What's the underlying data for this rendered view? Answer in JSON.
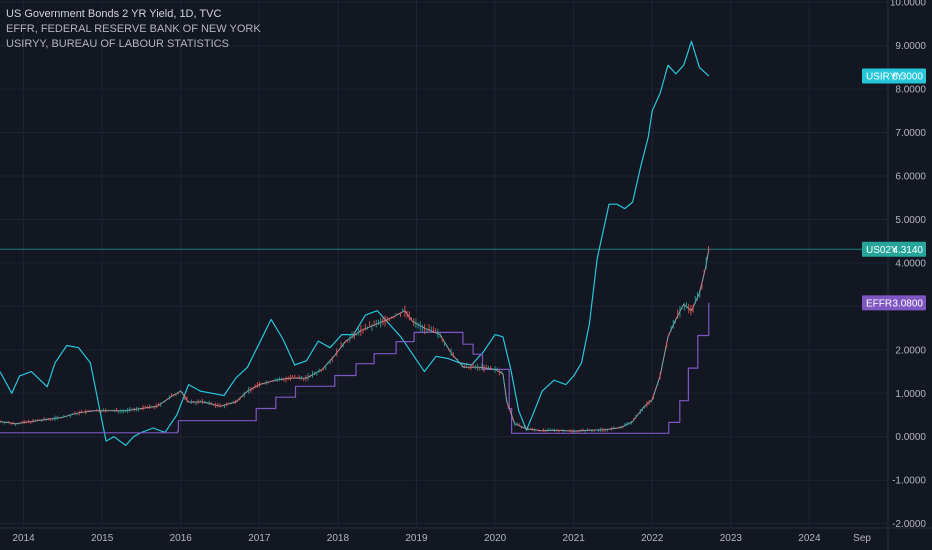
{
  "legend": {
    "title": "US Government Bonds 2 YR Yield, 1D, TVC",
    "line2": "EFFR, FEDERAL RESERVE BANK OF NEW YORK",
    "line3": "USIRYY, BUREAU OF LABOUR STATISTICS"
  },
  "colors": {
    "background": "#131722",
    "grid": "#1f2332",
    "usirry": "#26c6da",
    "us02y": "#26a69a",
    "us02y_down": "#ef5350",
    "us02y_line": "#9aa0ab",
    "effr": "#7e57c2"
  },
  "chart_data": {
    "type": "line",
    "xlim": [
      2013.7,
      2025.0
    ],
    "ylim": [
      -2.1,
      10.05
    ],
    "x_ticks": [
      {
        "x": 2014,
        "label": "2014"
      },
      {
        "x": 2015,
        "label": "2015"
      },
      {
        "x": 2016,
        "label": "2016"
      },
      {
        "x": 2017,
        "label": "2017"
      },
      {
        "x": 2018,
        "label": "2018"
      },
      {
        "x": 2019,
        "label": "2019"
      },
      {
        "x": 2020,
        "label": "2020"
      },
      {
        "x": 2021,
        "label": "2021"
      },
      {
        "x": 2022,
        "label": "2022"
      },
      {
        "x": 2023,
        "label": "2023"
      },
      {
        "x": 2024,
        "label": "2024"
      },
      {
        "x": 2024.67,
        "label": "Sep"
      }
    ],
    "y_ticks": [
      {
        "v": 10,
        "label": "10.0000"
      },
      {
        "v": 9,
        "label": "9.0000"
      },
      {
        "v": 8,
        "label": "8.0000"
      },
      {
        "v": 7,
        "label": "7.0000"
      },
      {
        "v": 6,
        "label": "6.0000"
      },
      {
        "v": 5,
        "label": "5.0000"
      },
      {
        "v": 4,
        "label": "4.0000"
      },
      {
        "v": 3,
        "label": "3.0000"
      },
      {
        "v": 2,
        "label": "2.0000"
      },
      {
        "v": 1,
        "label": "1.0000"
      },
      {
        "v": 0,
        "label": "0.0000"
      },
      {
        "v": -1,
        "label": "-1.0000"
      },
      {
        "v": -2,
        "label": "-2.0000"
      }
    ],
    "price_line": 4.314,
    "series": [
      {
        "name": "USIRYY",
        "last_value": "8.3000",
        "points": [
          [
            2013.7,
            1.5
          ],
          [
            2013.85,
            1.0
          ],
          [
            2013.95,
            1.4
          ],
          [
            2014.1,
            1.5
          ],
          [
            2014.3,
            1.15
          ],
          [
            2014.4,
            1.7
          ],
          [
            2014.55,
            2.1
          ],
          [
            2014.7,
            2.05
          ],
          [
            2014.85,
            1.7
          ],
          [
            2014.95,
            0.8
          ],
          [
            2015.05,
            -0.1
          ],
          [
            2015.15,
            0.0
          ],
          [
            2015.3,
            -0.2
          ],
          [
            2015.4,
            0.0
          ],
          [
            2015.5,
            0.1
          ],
          [
            2015.65,
            0.2
          ],
          [
            2015.8,
            0.1
          ],
          [
            2015.95,
            0.5
          ],
          [
            2016.1,
            1.2
          ],
          [
            2016.25,
            1.05
          ],
          [
            2016.4,
            1.0
          ],
          [
            2016.55,
            0.95
          ],
          [
            2016.7,
            1.35
          ],
          [
            2016.85,
            1.6
          ],
          [
            2017.0,
            2.15
          ],
          [
            2017.15,
            2.7
          ],
          [
            2017.3,
            2.25
          ],
          [
            2017.45,
            1.65
          ],
          [
            2017.6,
            1.75
          ],
          [
            2017.75,
            2.2
          ],
          [
            2017.9,
            2.05
          ],
          [
            2018.05,
            2.35
          ],
          [
            2018.2,
            2.35
          ],
          [
            2018.35,
            2.8
          ],
          [
            2018.5,
            2.9
          ],
          [
            2018.65,
            2.6
          ],
          [
            2018.8,
            2.3
          ],
          [
            2018.95,
            1.9
          ],
          [
            2019.1,
            1.5
          ],
          [
            2019.25,
            1.85
          ],
          [
            2019.4,
            1.8
          ],
          [
            2019.55,
            1.7
          ],
          [
            2019.7,
            1.65
          ],
          [
            2019.85,
            1.95
          ],
          [
            2020.0,
            2.35
          ],
          [
            2020.1,
            2.3
          ],
          [
            2020.2,
            1.55
          ],
          [
            2020.3,
            0.6
          ],
          [
            2020.4,
            0.15
          ],
          [
            2020.5,
            0.6
          ],
          [
            2020.6,
            1.05
          ],
          [
            2020.75,
            1.3
          ],
          [
            2020.9,
            1.2
          ],
          [
            2021.0,
            1.4
          ],
          [
            2021.1,
            1.7
          ],
          [
            2021.2,
            2.6
          ],
          [
            2021.3,
            4.1
          ],
          [
            2021.45,
            5.35
          ],
          [
            2021.55,
            5.35
          ],
          [
            2021.65,
            5.25
          ],
          [
            2021.75,
            5.4
          ],
          [
            2021.85,
            6.2
          ],
          [
            2021.95,
            6.9
          ],
          [
            2022.0,
            7.5
          ],
          [
            2022.1,
            7.9
          ],
          [
            2022.2,
            8.55
          ],
          [
            2022.3,
            8.35
          ],
          [
            2022.4,
            8.55
          ],
          [
            2022.5,
            9.1
          ],
          [
            2022.6,
            8.5
          ],
          [
            2022.72,
            8.3
          ]
        ]
      },
      {
        "name": "US02Y",
        "last_value": "4.3140",
        "points": [
          [
            2013.7,
            0.35
          ],
          [
            2013.9,
            0.3
          ],
          [
            2014.1,
            0.35
          ],
          [
            2014.3,
            0.4
          ],
          [
            2014.5,
            0.45
          ],
          [
            2014.7,
            0.55
          ],
          [
            2014.9,
            0.6
          ],
          [
            2015.1,
            0.6
          ],
          [
            2015.3,
            0.6
          ],
          [
            2015.5,
            0.65
          ],
          [
            2015.7,
            0.7
          ],
          [
            2015.9,
            0.95
          ],
          [
            2016.0,
            1.05
          ],
          [
            2016.1,
            0.8
          ],
          [
            2016.3,
            0.8
          ],
          [
            2016.5,
            0.7
          ],
          [
            2016.7,
            0.8
          ],
          [
            2016.85,
            1.05
          ],
          [
            2017.0,
            1.2
          ],
          [
            2017.2,
            1.3
          ],
          [
            2017.4,
            1.35
          ],
          [
            2017.6,
            1.35
          ],
          [
            2017.8,
            1.55
          ],
          [
            2017.95,
            1.85
          ],
          [
            2018.1,
            2.2
          ],
          [
            2018.3,
            2.45
          ],
          [
            2018.5,
            2.6
          ],
          [
            2018.7,
            2.75
          ],
          [
            2018.85,
            2.9
          ],
          [
            2018.95,
            2.65
          ],
          [
            2019.1,
            2.5
          ],
          [
            2019.3,
            2.35
          ],
          [
            2019.45,
            1.9
          ],
          [
            2019.6,
            1.6
          ],
          [
            2019.8,
            1.6
          ],
          [
            2020.0,
            1.55
          ],
          [
            2020.1,
            1.45
          ],
          [
            2020.15,
            0.8
          ],
          [
            2020.25,
            0.3
          ],
          [
            2020.4,
            0.18
          ],
          [
            2020.6,
            0.14
          ],
          [
            2020.8,
            0.15
          ],
          [
            2021.0,
            0.13
          ],
          [
            2021.2,
            0.15
          ],
          [
            2021.4,
            0.16
          ],
          [
            2021.6,
            0.21
          ],
          [
            2021.75,
            0.35
          ],
          [
            2021.9,
            0.7
          ],
          [
            2022.0,
            0.85
          ],
          [
            2022.1,
            1.4
          ],
          [
            2022.2,
            2.3
          ],
          [
            2022.3,
            2.7
          ],
          [
            2022.4,
            3.05
          ],
          [
            2022.5,
            2.9
          ],
          [
            2022.6,
            3.3
          ],
          [
            2022.68,
            3.9
          ],
          [
            2022.72,
            4.314
          ]
        ]
      },
      {
        "name": "EFFR",
        "last_value": "3.0800",
        "step": true,
        "points": [
          [
            2013.7,
            0.09
          ],
          [
            2015.96,
            0.13
          ],
          [
            2015.97,
            0.37
          ],
          [
            2016.95,
            0.37
          ],
          [
            2016.96,
            0.65
          ],
          [
            2017.2,
            0.65
          ],
          [
            2017.21,
            0.91
          ],
          [
            2017.45,
            0.91
          ],
          [
            2017.46,
            1.16
          ],
          [
            2017.95,
            1.16
          ],
          [
            2017.96,
            1.41
          ],
          [
            2018.22,
            1.41
          ],
          [
            2018.23,
            1.68
          ],
          [
            2018.45,
            1.68
          ],
          [
            2018.46,
            1.91
          ],
          [
            2018.73,
            1.91
          ],
          [
            2018.74,
            2.19
          ],
          [
            2018.96,
            2.19
          ],
          [
            2018.97,
            2.4
          ],
          [
            2019.58,
            2.4
          ],
          [
            2019.59,
            2.13
          ],
          [
            2019.71,
            2.13
          ],
          [
            2019.72,
            1.9
          ],
          [
            2019.83,
            1.9
          ],
          [
            2019.84,
            1.55
          ],
          [
            2020.17,
            1.55
          ],
          [
            2020.18,
            0.65
          ],
          [
            2020.2,
            0.65
          ],
          [
            2020.21,
            0.08
          ],
          [
            2022.2,
            0.08
          ],
          [
            2022.21,
            0.33
          ],
          [
            2022.34,
            0.33
          ],
          [
            2022.35,
            0.83
          ],
          [
            2022.45,
            0.83
          ],
          [
            2022.46,
            1.58
          ],
          [
            2022.57,
            1.58
          ],
          [
            2022.58,
            2.33
          ],
          [
            2022.71,
            2.33
          ],
          [
            2022.72,
            3.08
          ]
        ]
      }
    ]
  }
}
